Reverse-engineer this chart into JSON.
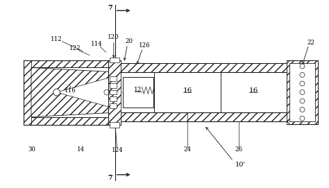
{
  "bg_color": "#ffffff",
  "line_color": "#1a1a1a",
  "labels": {
    "10prime": "10'",
    "12": "12",
    "14": "14",
    "16a": "16",
    "16b": "16",
    "20": "20",
    "22": "22",
    "24": "24",
    "26": "26",
    "30": "30",
    "112": "112",
    "114": "114",
    "116": "116",
    "120": "120",
    "122": "122",
    "124": "124",
    "126": "126",
    "7": "7"
  },
  "figsize": [
    4.74,
    2.71
  ],
  "dpi": 100
}
